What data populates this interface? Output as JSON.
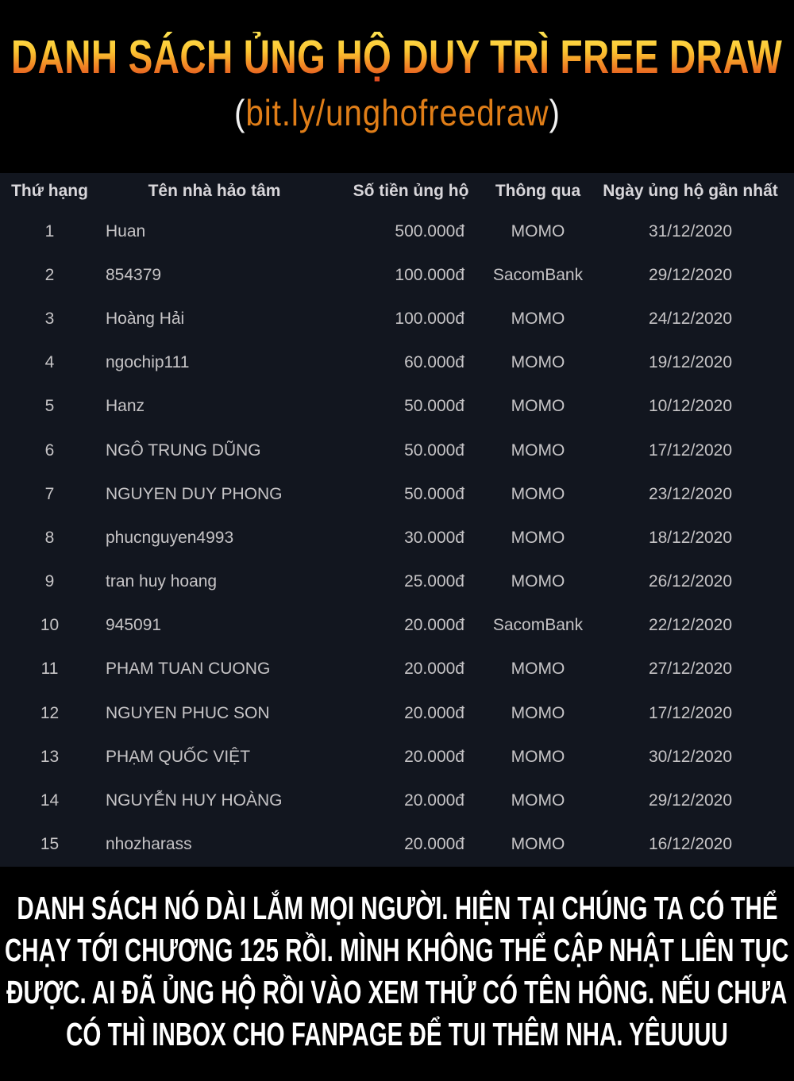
{
  "banner": {
    "title": "DANH SÁCH ỦNG HỘ DUY TRÌ FREE DRAW",
    "link_open": "(",
    "link": "bit.ly/unghofreedraw",
    "link_close": ")"
  },
  "table": {
    "columns": [
      "Thứ hạng",
      "Tên nhà hảo tâm",
      "Số tiền ủng hộ",
      "Thông qua",
      "Ngày ủng hộ gần nhất"
    ],
    "rows": [
      {
        "rank": "1",
        "name": "Huan",
        "amount": "500.000đ",
        "via": "MOMO",
        "date": "31/12/2020"
      },
      {
        "rank": "2",
        "name": "854379",
        "amount": "100.000đ",
        "via": "SacomBank",
        "date": "29/12/2020"
      },
      {
        "rank": "3",
        "name": "Hoàng Hải",
        "amount": "100.000đ",
        "via": "MOMO",
        "date": "24/12/2020"
      },
      {
        "rank": "4",
        "name": "ngochip111",
        "amount": "60.000đ",
        "via": "MOMO",
        "date": "19/12/2020"
      },
      {
        "rank": "5",
        "name": "Hanz",
        "amount": "50.000đ",
        "via": "MOMO",
        "date": "10/12/2020"
      },
      {
        "rank": "6",
        "name": "NGÔ TRUNG DŨNG",
        "amount": "50.000đ",
        "via": "MOMO",
        "date": "17/12/2020"
      },
      {
        "rank": "7",
        "name": "NGUYEN DUY PHONG",
        "amount": "50.000đ",
        "via": "MOMO",
        "date": "23/12/2020"
      },
      {
        "rank": "8",
        "name": "phucnguyen4993",
        "amount": "30.000đ",
        "via": "MOMO",
        "date": "18/12/2020"
      },
      {
        "rank": "9",
        "name": "tran huy hoang",
        "amount": "25.000đ",
        "via": "MOMO",
        "date": "26/12/2020"
      },
      {
        "rank": "10",
        "name": "945091",
        "amount": "20.000đ",
        "via": "SacomBank",
        "date": "22/12/2020"
      },
      {
        "rank": "11",
        "name": "PHAM TUAN CUONG",
        "amount": "20.000đ",
        "via": "MOMO",
        "date": "27/12/2020"
      },
      {
        "rank": "12",
        "name": "NGUYEN PHUC SON",
        "amount": "20.000đ",
        "via": "MOMO",
        "date": "17/12/2020"
      },
      {
        "rank": "13",
        "name": "PHẠM QUỐC VIỆT",
        "amount": "20.000đ",
        "via": "MOMO",
        "date": "30/12/2020"
      },
      {
        "rank": "14",
        "name": "NGUYỄN HUY HOÀNG",
        "amount": "20.000đ",
        "via": "MOMO",
        "date": "29/12/2020"
      },
      {
        "rank": "15",
        "name": "nhozharass",
        "amount": "20.000đ",
        "via": "MOMO",
        "date": "16/12/2020"
      }
    ]
  },
  "footer": {
    "lines": [
      "DANH SÁCH NÓ DÀI LẮM MỌI NGƯỜI. HIỆN TẠI CHÚNG TA CÓ THỂ",
      "CHẠY TỚI CHƯƠNG 125 RỒI. MÌNH KHÔNG THỂ CẬP NHẬT LIÊN TỤC",
      "ĐƯỢC. AI ĐÃ ỦNG HỘ RỒI VÀO XEM THỬ CÓ TÊN HÔNG. NẾU CHƯA",
      "CÓ THÌ INBOX CHO FANPAGE ĐỂ TUI THÊM NHA. YÊUUUU"
    ]
  },
  "colors": {
    "background_top": "#000000",
    "table_background": "#12161f",
    "header_text": "#d8d6da",
    "row_text": "#c6c4c6",
    "title_gradient_top": "#fde251",
    "title_gradient_mid": "#f08124",
    "title_gradient_bottom": "#da3f1f",
    "link_orange": "#e07e18",
    "paren_white": "#f2f2f2",
    "footer_text": "#ffffff"
  }
}
